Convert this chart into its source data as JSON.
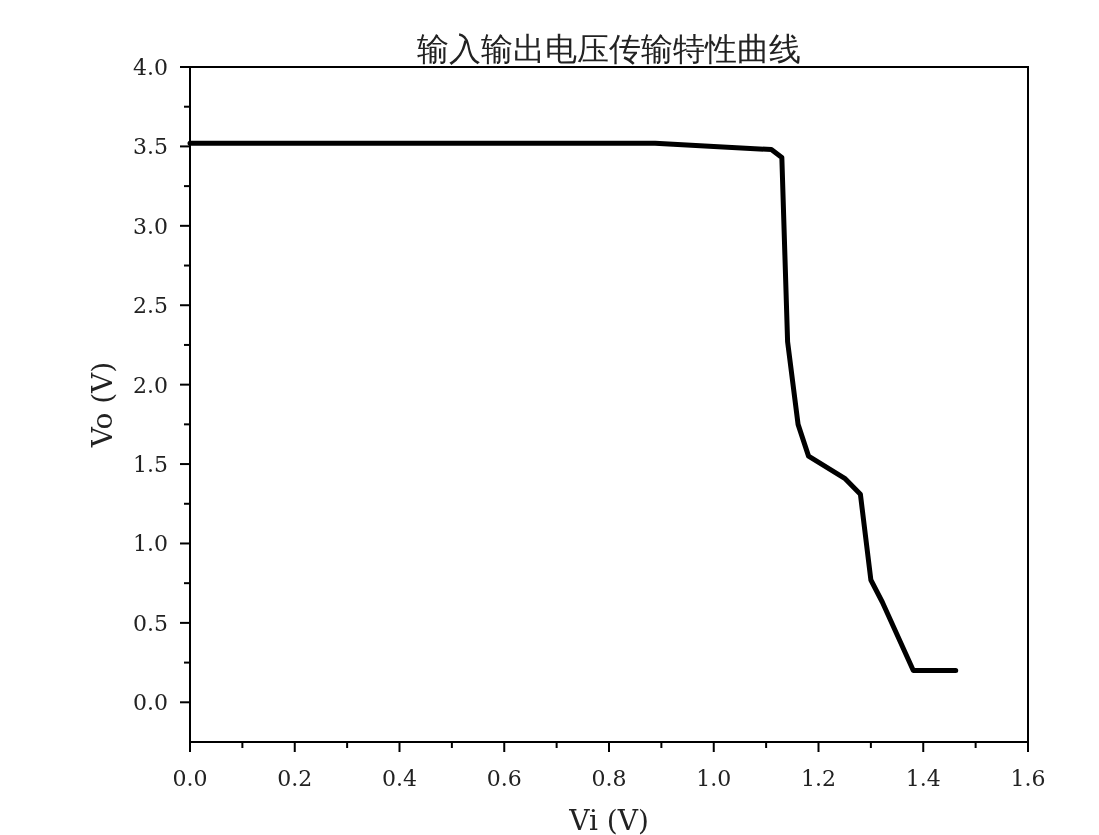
{
  "chart_data": {
    "type": "line",
    "title": "输入输出电压传输特性曲线",
    "xlabel": "Vi (V)",
    "ylabel": "Vo (V)",
    "x": [
      0,
      0.2,
      0.4,
      0.6,
      0.888,
      1.0,
      1.11,
      1.13,
      1.141,
      1.161,
      1.181,
      1.25,
      1.28,
      1.3,
      1.322,
      1.381,
      1.462
    ],
    "series": [
      {
        "color": "#000000",
        "values": [
          3.52,
          3.52,
          3.52,
          3.52,
          3.52,
          3.5,
          3.48,
          3.43,
          2.27,
          1.75,
          1.55,
          1.41,
          1.31,
          0.77,
          0.63,
          0.2,
          0.2
        ]
      }
    ],
    "xlim": [
      0,
      1.6
    ],
    "ylim": [
      -0.25,
      4
    ],
    "xticks": [
      {
        "value": 0,
        "label": "0.0"
      },
      {
        "value": 0.1,
        "label": null
      },
      {
        "value": 0.2,
        "label": "0.2"
      },
      {
        "value": 0.3,
        "label": null
      },
      {
        "value": 0.4,
        "label": "0.4"
      },
      {
        "value": 0.5,
        "label": null
      },
      {
        "value": 0.6,
        "label": "0.6"
      },
      {
        "value": 0.7,
        "label": null
      },
      {
        "value": 0.8,
        "label": "0.8"
      },
      {
        "value": 0.9,
        "label": null
      },
      {
        "value": 1,
        "label": "1.0"
      },
      {
        "value": 1.1,
        "label": null
      },
      {
        "value": 1.2,
        "label": "1.2"
      },
      {
        "value": 1.3,
        "label": null
      },
      {
        "value": 1.4,
        "label": "1.4"
      },
      {
        "value": 1.5,
        "label": null
      },
      {
        "value": 1.6,
        "label": "1.6"
      }
    ],
    "yticks": [
      {
        "value": 0,
        "label": "0.0"
      },
      {
        "value": 0.25,
        "label": null
      },
      {
        "value": 0.5,
        "label": "0.5"
      },
      {
        "value": 0.75,
        "label": null
      },
      {
        "value": 1,
        "label": "1.0"
      },
      {
        "value": 1.25,
        "label": null
      },
      {
        "value": 1.5,
        "label": "1.5"
      },
      {
        "value": 1.75,
        "label": null
      },
      {
        "value": 2,
        "label": "2.0"
      },
      {
        "value": 2.25,
        "label": null
      },
      {
        "value": 2.5,
        "label": "2.5"
      },
      {
        "value": 2.75,
        "label": null
      },
      {
        "value": 3,
        "label": "3.0"
      },
      {
        "value": 3.25,
        "label": null
      },
      {
        "value": 3.5,
        "label": "3.5"
      },
      {
        "value": 3.75,
        "label": null
      },
      {
        "value": 4,
        "label": "4.0"
      }
    ],
    "grid": false,
    "marker": "none",
    "line_style": "solid"
  }
}
